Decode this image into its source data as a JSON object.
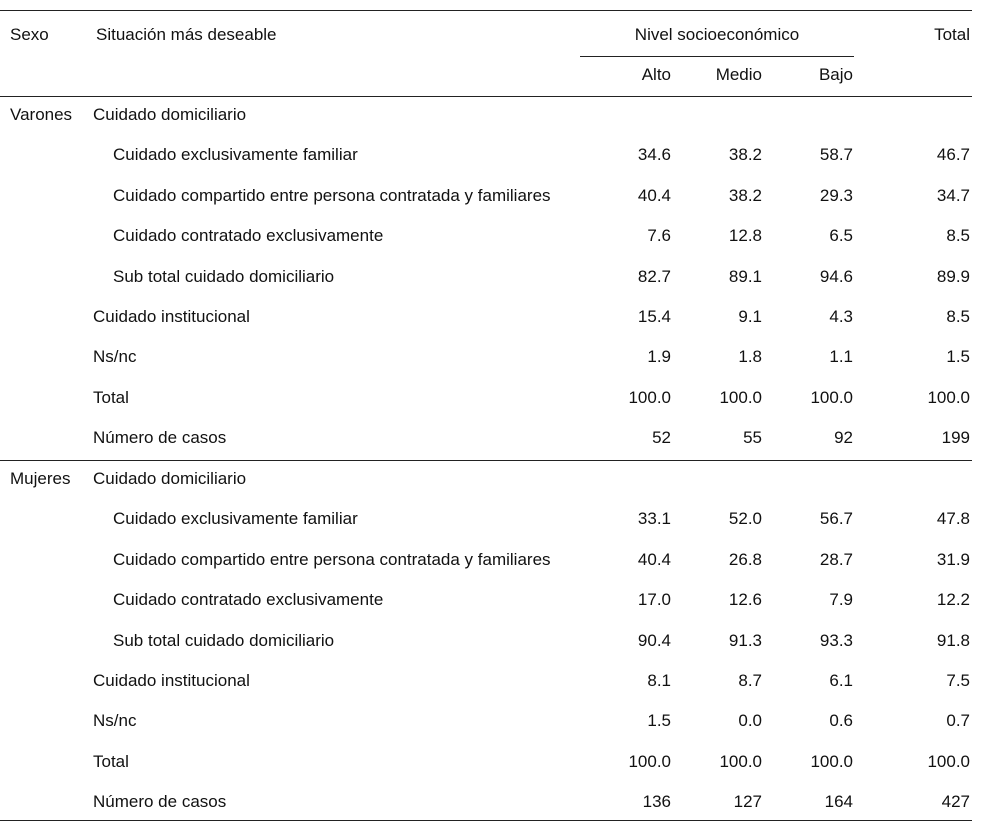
{
  "header": {
    "sexo": "Sexo",
    "situacion": "Situación más deseable",
    "nivel": "Nivel socioeconómico",
    "total": "Total",
    "alto": "Alto",
    "medio": "Medio",
    "bajo": "Bajo"
  },
  "groups": [
    {
      "sexo": "Varones",
      "domiciliario": {
        "label": "Cuidado domiciliario",
        "rows": [
          {
            "label": "Cuidado exclusivamente familiar",
            "values": [
              "34.6",
              "38.2",
              "58.7",
              "46.7"
            ]
          },
          {
            "label": "Cuidado compartido entre persona contratada y familiares",
            "values": [
              "40.4",
              "38.2",
              "29.3",
              "34.7"
            ]
          },
          {
            "label": "Cuidado contratado exclusivamente",
            "values": [
              "7.6",
              "12.8",
              "6.5",
              "8.5"
            ]
          },
          {
            "label": "Sub total cuidado domiciliario",
            "values": [
              "82.7",
              "89.1",
              "94.6",
              "89.9"
            ]
          }
        ]
      },
      "rows": [
        {
          "label": "Cuidado institucional",
          "values": [
            "15.4",
            "9.1",
            "4.3",
            "8.5"
          ]
        },
        {
          "label": "Ns/nc",
          "values": [
            "1.9",
            "1.8",
            "1.1",
            "1.5"
          ]
        },
        {
          "label": "Total",
          "values": [
            "100.0",
            "100.0",
            "100.0",
            "100.0"
          ]
        },
        {
          "label": "Número de casos",
          "values": [
            "52",
            "55",
            "92",
            "199"
          ]
        }
      ]
    },
    {
      "sexo": "Mujeres",
      "domiciliario": {
        "label": "Cuidado domiciliario",
        "rows": [
          {
            "label": "Cuidado exclusivamente familiar",
            "values": [
              "33.1",
              "52.0",
              "56.7",
              "47.8"
            ]
          },
          {
            "label": "Cuidado compartido entre persona contratada y familiares",
            "values": [
              "40.4",
              "26.8",
              "28.7",
              "31.9"
            ]
          },
          {
            "label": "Cuidado contratado exclusivamente",
            "values": [
              "17.0",
              "12.6",
              "7.9",
              "12.2"
            ]
          },
          {
            "label": "Sub total cuidado domiciliario",
            "values": [
              "90.4",
              "91.3",
              "93.3",
              "91.8"
            ]
          }
        ]
      },
      "rows": [
        {
          "label": "Cuidado institucional",
          "values": [
            "8.1",
            "8.7",
            "6.1",
            "7.5"
          ]
        },
        {
          "label": "Ns/nc",
          "values": [
            "1.5",
            "0.0",
            "0.6",
            "0.7"
          ]
        },
        {
          "label": "Total",
          "values": [
            "100.0",
            "100.0",
            "100.0",
            "100.0"
          ]
        },
        {
          "label": "Número de casos",
          "values": [
            "136",
            "127",
            "164",
            "427"
          ]
        }
      ]
    }
  ]
}
